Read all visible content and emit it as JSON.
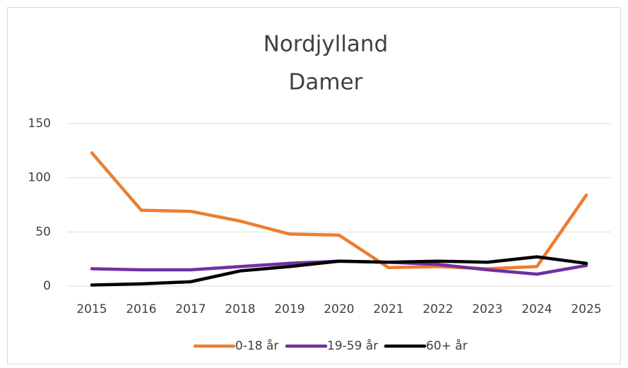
{
  "chart_data": {
    "type": "line",
    "title": "Nordjylland",
    "subtitle": "Damer",
    "categories": [
      "2015",
      "2016",
      "2017",
      "2018",
      "2019",
      "2020",
      "2021",
      "2022",
      "2023",
      "2024",
      "2025"
    ],
    "series": [
      {
        "name": "0-18 år",
        "color": "#ed7d31",
        "values": [
          123,
          70,
          69,
          60,
          48,
          47,
          17,
          18,
          16,
          18,
          84
        ]
      },
      {
        "name": "19-59 år",
        "color": "#7030a0",
        "values": [
          16,
          15,
          15,
          18,
          21,
          23,
          22,
          20,
          15,
          11,
          19
        ]
      },
      {
        "name": "60+ år",
        "color": "#000000",
        "values": [
          1,
          2,
          4,
          14,
          18,
          23,
          22,
          23,
          22,
          27,
          21
        ]
      }
    ],
    "ylim": [
      0,
      150
    ],
    "yticks": [
      0,
      50,
      100,
      150
    ],
    "grid": true,
    "legend": "bottom"
  }
}
